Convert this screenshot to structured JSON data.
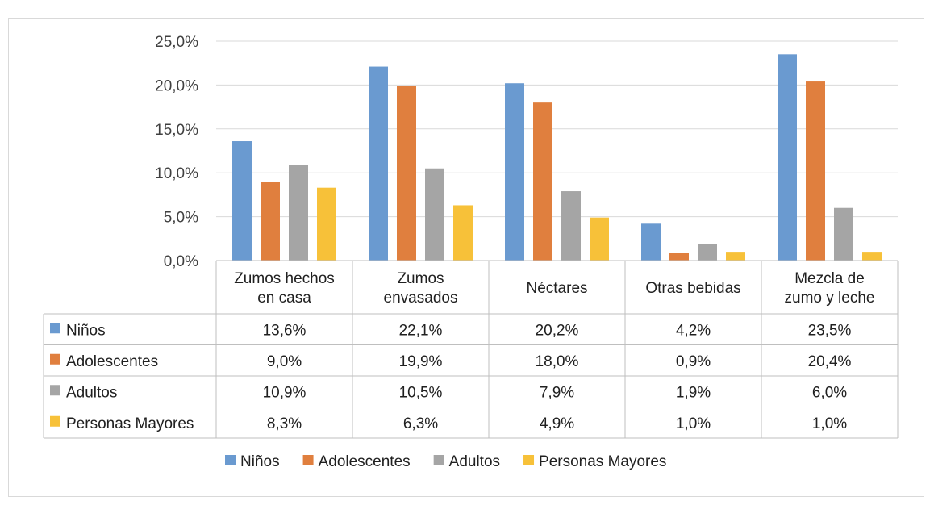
{
  "chart_data": {
    "type": "bar",
    "title": "",
    "categories": [
      [
        "Zumos hechos",
        "en casa"
      ],
      [
        "Zumos",
        "envasados"
      ],
      [
        "Néctares"
      ],
      [
        "Otras bebidas"
      ],
      [
        "Mezcla de",
        "zumo y leche"
      ]
    ],
    "series": [
      {
        "name": "Niños",
        "color": "#6a9ad0",
        "values": [
          13.6,
          22.1,
          20.2,
          4.2,
          23.5
        ]
      },
      {
        "name": "Adolescentes",
        "color": "#e07f3e",
        "values": [
          9.0,
          19.9,
          18.0,
          0.9,
          20.4
        ]
      },
      {
        "name": "Adultos",
        "color": "#a5a5a5",
        "values": [
          10.9,
          10.5,
          7.9,
          1.9,
          6.0
        ]
      },
      {
        "name": "Personas Mayores",
        "color": "#f7c139",
        "values": [
          8.3,
          6.3,
          4.9,
          1.0,
          1.0
        ]
      }
    ],
    "table_values": [
      [
        "13,6%",
        "22,1%",
        "20,2%",
        "4,2%",
        "23,5%"
      ],
      [
        "9,0%",
        "19,9%",
        "18,0%",
        "0,9%",
        "20,4%"
      ],
      [
        "10,9%",
        "10,5%",
        "7,9%",
        "1,9%",
        "6,0%"
      ],
      [
        "8,3%",
        "6,3%",
        "4,9%",
        "1,0%",
        "1,0%"
      ]
    ],
    "ylim": [
      0,
      25
    ],
    "yticks": [
      0,
      5,
      10,
      15,
      20,
      25
    ],
    "ytick_labels": [
      "0,0%",
      "5,0%",
      "10,0%",
      "15,0%",
      "20,0%",
      "25,0%"
    ],
    "grid": true,
    "legend_position": "bottom",
    "data_table": true
  }
}
